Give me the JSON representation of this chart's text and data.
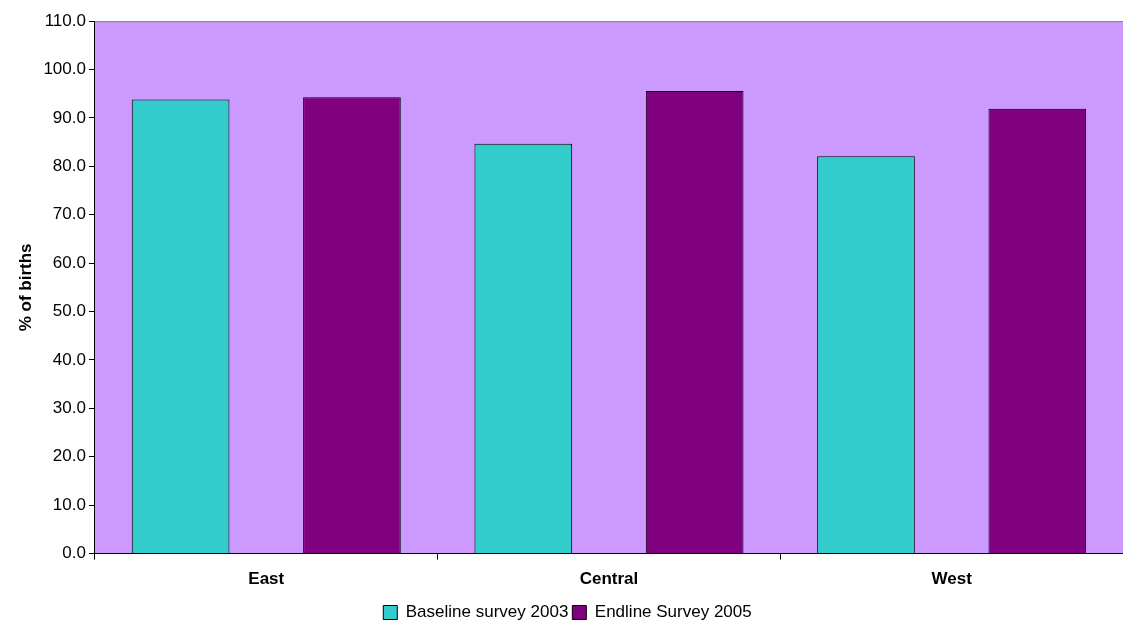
{
  "chart_data": {
    "type": "bar",
    "ylabel": "% of births",
    "categories": [
      "East",
      "Central",
      "West"
    ],
    "series": [
      {
        "name": "Baseline survey 2003",
        "color": "#33cccc",
        "values": [
          93.8,
          84.7,
          82.1
        ]
      },
      {
        "name": "Endline Survey 2005",
        "color": "#800080",
        "values": [
          94.3,
          95.6,
          91.9
        ]
      }
    ],
    "ylim": [
      0,
      110
    ],
    "yticks": [
      {
        "value": 0,
        "label": "0.0"
      },
      {
        "value": 10,
        "label": "10.0"
      },
      {
        "value": 20,
        "label": "20.0"
      },
      {
        "value": 30,
        "label": "30.0"
      },
      {
        "value": 40,
        "label": "40.0"
      },
      {
        "value": 50,
        "label": "50.0"
      },
      {
        "value": 60,
        "label": "60.0"
      },
      {
        "value": 70,
        "label": "70.0"
      },
      {
        "value": 80,
        "label": "80.0"
      },
      {
        "value": 90,
        "label": "90.0"
      },
      {
        "value": 100,
        "label": "100.0"
      },
      {
        "value": 110,
        "label": "110.0"
      }
    ],
    "grid": false,
    "legend": "bottom"
  }
}
